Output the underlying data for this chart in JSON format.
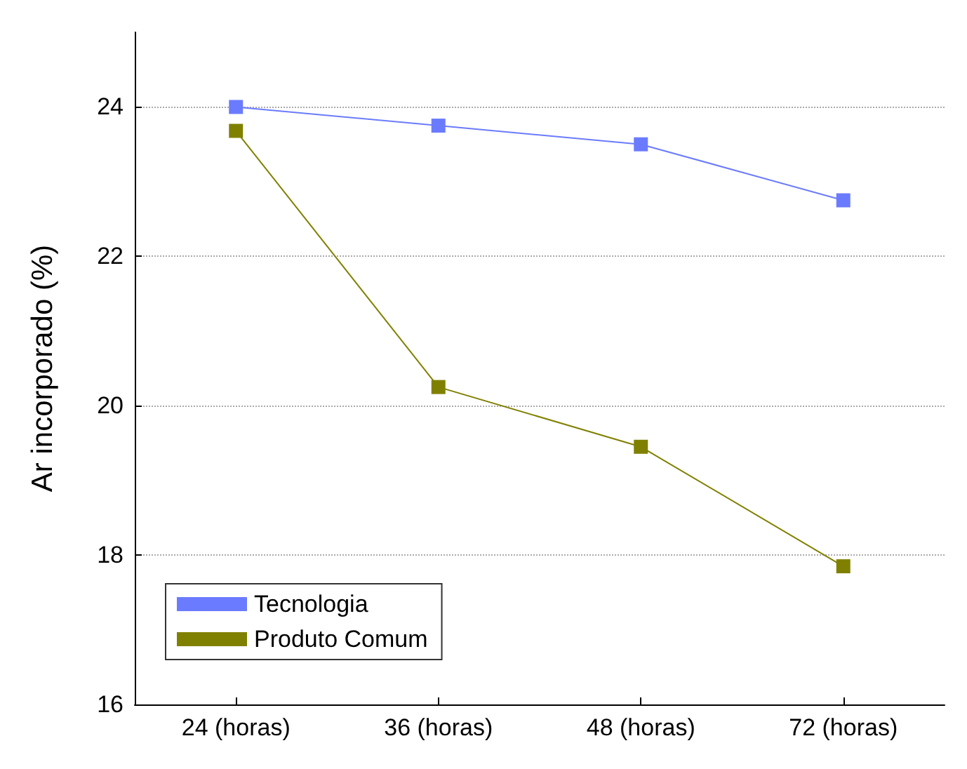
{
  "chart_data": {
    "type": "line",
    "ylabel": "Ar incorporado (%)",
    "categories": [
      "24 (horas)",
      "36 (horas)",
      "48 (horas)",
      "72 (horas)"
    ],
    "series": [
      {
        "name": "Tecnologia",
        "color": "#6b7bff",
        "values": [
          24.0,
          23.75,
          23.5,
          22.75
        ]
      },
      {
        "name": "Produto Comum",
        "color": "#808000",
        "values": [
          23.68,
          20.25,
          19.45,
          17.85
        ]
      }
    ],
    "ylim": [
      16,
      25
    ],
    "yticks": [
      16,
      18,
      20,
      22,
      24
    ],
    "grid": "y",
    "legend": "bottom left",
    "marker": "square",
    "line_style": "solid"
  }
}
